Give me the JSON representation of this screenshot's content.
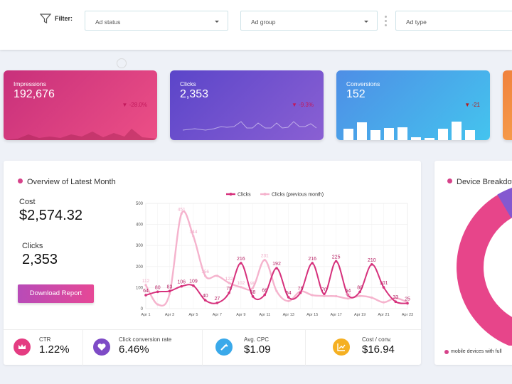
{
  "filter": {
    "label": "Filter:",
    "dropdowns": [
      {
        "placeholder": "Ad status"
      },
      {
        "placeholder": "Ad group"
      },
      {
        "placeholder": "Ad type"
      }
    ]
  },
  "kpis": [
    {
      "title": "Impressions",
      "value": "192,676",
      "delta": "-28.0%",
      "colors": [
        "#c8307b",
        "#ec4f86"
      ]
    },
    {
      "title": "Clicks",
      "value": "2,353",
      "delta": "-9.3%",
      "colors": [
        "#5b45c9",
        "#8a60d3"
      ]
    },
    {
      "title": "Conversions",
      "value": "152",
      "delta": "-21",
      "colors": [
        "#4e8ee6",
        "#44c4ee"
      ]
    },
    {
      "title": "",
      "value": "",
      "delta": "",
      "colors": [
        "#f0813c",
        "#f69c4a"
      ]
    }
  ],
  "overview": {
    "title": "Overview of Latest Month",
    "cost_label": "Cost",
    "cost_value": "$2,574.32",
    "clicks_label": "Clicks",
    "clicks_value": "2,353",
    "download_label": "Download Report"
  },
  "metrics": [
    {
      "label": "CTR",
      "value": "1.22%",
      "color": "#e43c82",
      "icon": "crown-icon"
    },
    {
      "label": "Click conversion rate",
      "value": "6.46%",
      "color": "#7e4bc6",
      "icon": "heart-icon"
    },
    {
      "label": "Avg. CPC",
      "value": "$1.09",
      "color": "#3aa9ea",
      "icon": "magic-wand-icon"
    },
    {
      "label": "Cost / conv.",
      "value": "$16.94",
      "color": "#f5b022",
      "icon": "chart-icon"
    }
  ],
  "device": {
    "title": "Device Breakdown",
    "legend": "mobile devices with full"
  },
  "chart_data": {
    "type": "line",
    "x": [
      "Apr 1",
      "Apr 2",
      "Apr 3",
      "Apr 4",
      "Apr 5",
      "Apr 6",
      "Apr 7",
      "Apr 8",
      "Apr 9",
      "Apr 10",
      "Apr 11",
      "Apr 12",
      "Apr 13",
      "Apr 14",
      "Apr 15",
      "Apr 16",
      "Apr 17",
      "Apr 18",
      "Apr 19",
      "Apr 20",
      "Apr 21",
      "Apr 22",
      "Apr 23"
    ],
    "xticks": [
      "Apr 1",
      "Apr 3",
      "Apr 5",
      "Apr 7",
      "Apr 9",
      "Apr 11",
      "Apr 13",
      "Apr 15",
      "Apr 17",
      "Apr 19",
      "Apr 21",
      "Apr 23"
    ],
    "yticks": [
      "0",
      "100",
      "200",
      "300",
      "400",
      "500"
    ],
    "ylim": [
      0,
      500
    ],
    "series": [
      {
        "name": "Clicks",
        "color": "#d6317c",
        "values": [
          64,
          80,
          83,
          106,
          109,
          40,
          27,
          75,
          216,
          58,
          66,
          192,
          54,
          75,
          216,
          70,
          225,
          64,
          80,
          210,
          101,
          33,
          25
        ]
      },
      {
        "name": "Clicks (previous month)",
        "color": "#f5b3cd",
        "values": [
          112,
          20,
          70,
          451,
          344,
          156,
          156,
          122,
          102,
          99,
          231,
          83,
          36,
          82,
          64,
          60,
          59,
          48,
          60,
          52,
          30,
          50,
          30
        ]
      }
    ],
    "labels_clicks": [
      "64",
      "80",
      "83",
      "106",
      "109",
      "40",
      "27",
      "75",
      "216",
      "58",
      "66",
      "192",
      "54",
      "75",
      "216",
      "70",
      "225",
      "64",
      "80",
      "210",
      "101",
      "33",
      "25"
    ],
    "labels_prev": [
      "112",
      "",
      "",
      "451",
      "344",
      "156",
      "",
      "122",
      "102",
      "99",
      "231",
      "",
      "",
      "",
      "",
      "",
      "",
      "48",
      "",
      "",
      "",
      "",
      ""
    ]
  }
}
